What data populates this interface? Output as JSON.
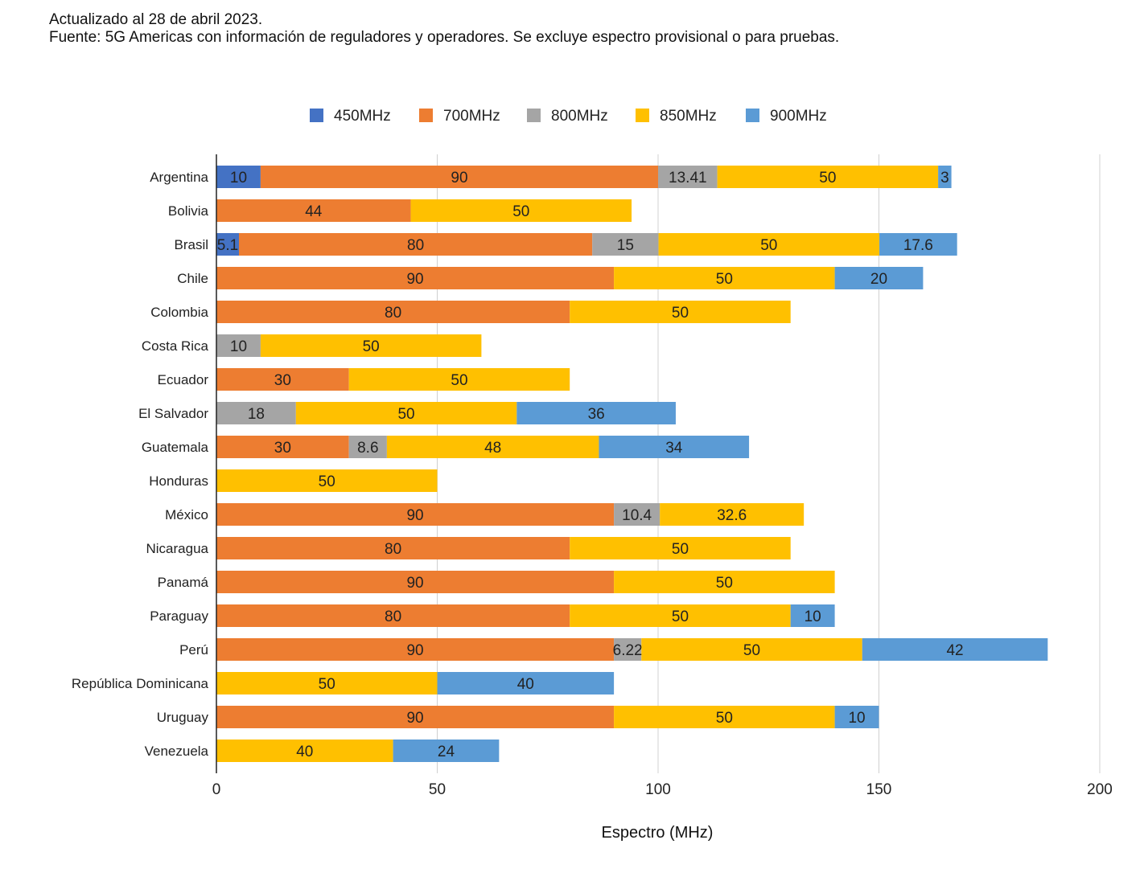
{
  "notes": {
    "updated": "Actualizado al 28 de abril 2023.",
    "source": "Fuente: 5G Americas con información de reguladores y operadores. Se excluye espectro provisional o para pruebas."
  },
  "chart_data": {
    "type": "bar",
    "orientation": "horizontal",
    "stacked": true,
    "title": "",
    "xlabel": "Espectro (MHz)",
    "ylabel": "",
    "xlim": [
      0,
      200
    ],
    "xticks": [
      0,
      50,
      100,
      150,
      200
    ],
    "grid": true,
    "legend_position": "top",
    "categories": [
      "Argentina",
      "Bolivia",
      "Brasil",
      "Chile",
      "Colombia",
      "Costa Rica",
      "Ecuador",
      "El Salvador",
      "Guatemala",
      "Honduras",
      "México",
      "Nicaragua",
      "Panamá",
      "Paraguay",
      "Perú",
      "República Dominicana",
      "Uruguay",
      "Venezuela"
    ],
    "series": [
      {
        "name": "450MHz",
        "color": "#4472C4",
        "values": [
          10,
          null,
          5.1,
          null,
          null,
          null,
          null,
          null,
          null,
          null,
          null,
          null,
          null,
          null,
          null,
          null,
          null,
          null
        ]
      },
      {
        "name": "700MHz",
        "color": "#ED7D31",
        "values": [
          90,
          44,
          80,
          90,
          80,
          null,
          30,
          null,
          30,
          null,
          90,
          80,
          90,
          80,
          90,
          null,
          90,
          null
        ]
      },
      {
        "name": "800MHz",
        "color": "#A5A5A5",
        "values": [
          13.41,
          null,
          15,
          null,
          null,
          10,
          null,
          18,
          8.6,
          null,
          10.4,
          null,
          null,
          null,
          6.22,
          null,
          null,
          null
        ]
      },
      {
        "name": "850MHz",
        "color": "#FFC000",
        "values": [
          50,
          50,
          50,
          50,
          50,
          50,
          50,
          50,
          48,
          50,
          32.6,
          50,
          50,
          50,
          50,
          50,
          50,
          40
        ]
      },
      {
        "name": "900MHz",
        "color": "#5B9BD5",
        "values": [
          3,
          null,
          17.6,
          20,
          null,
          null,
          null,
          36,
          34,
          null,
          null,
          null,
          null,
          10,
          42,
          40,
          10,
          24
        ]
      }
    ]
  }
}
